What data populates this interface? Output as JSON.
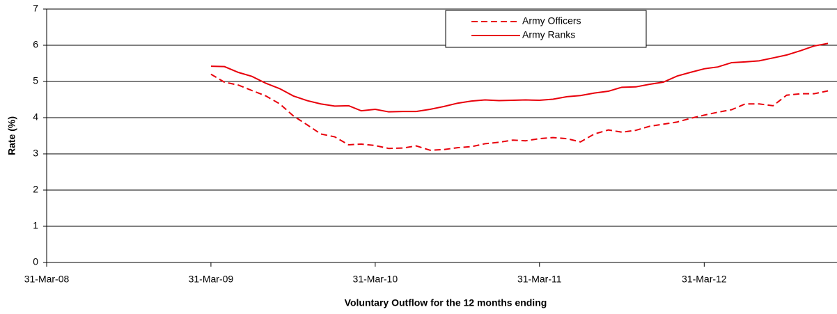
{
  "chart_data": {
    "type": "line",
    "y_label": "Rate (%)",
    "x_label": "Voluntary Outflow for the 12 months ending",
    "x": [
      "2009-03-31",
      "2009-04-30",
      "2009-05-31",
      "2009-06-30",
      "2009-07-31",
      "2009-08-31",
      "2009-09-30",
      "2009-10-31",
      "2009-11-30",
      "2009-12-31",
      "2010-01-31",
      "2010-02-28",
      "2010-03-31",
      "2010-04-30",
      "2010-05-31",
      "2010-06-30",
      "2010-07-31",
      "2010-08-31",
      "2010-09-30",
      "2010-10-31",
      "2010-11-30",
      "2010-12-31",
      "2011-01-31",
      "2011-02-28",
      "2011-03-31",
      "2011-04-30",
      "2011-05-31",
      "2011-06-30",
      "2011-07-31",
      "2011-08-31",
      "2011-09-30",
      "2011-10-31",
      "2011-11-30",
      "2011-12-31",
      "2012-01-31",
      "2012-02-29",
      "2012-03-31",
      "2012-04-30",
      "2012-05-31",
      "2012-06-30",
      "2012-07-31",
      "2012-08-31",
      "2012-09-30",
      "2012-10-31",
      "2012-11-30",
      "2012-12-31"
    ],
    "series": [
      {
        "name": "Army Officers",
        "color": "#e8000b",
        "dash": true,
        "values": [
          5.2,
          4.98,
          4.9,
          4.75,
          4.6,
          4.38,
          4.05,
          3.8,
          3.55,
          3.47,
          3.25,
          3.27,
          3.23,
          3.15,
          3.16,
          3.22,
          3.1,
          3.12,
          3.17,
          3.2,
          3.28,
          3.32,
          3.38,
          3.36,
          3.42,
          3.45,
          3.42,
          3.33,
          3.55,
          3.66,
          3.6,
          3.65,
          3.76,
          3.82,
          3.88,
          3.98,
          4.07,
          4.15,
          4.22,
          4.38,
          4.38,
          4.33,
          4.62,
          4.66,
          4.66,
          4.74
        ]
      },
      {
        "name": "Army Ranks",
        "color": "#e8000b",
        "dash": false,
        "values": [
          5.42,
          5.41,
          5.25,
          5.14,
          4.95,
          4.8,
          4.6,
          4.47,
          4.38,
          4.32,
          4.33,
          4.19,
          4.23,
          4.16,
          4.17,
          4.17,
          4.23,
          4.31,
          4.4,
          4.46,
          4.49,
          4.47,
          4.48,
          4.49,
          4.48,
          4.51,
          4.58,
          4.61,
          4.68,
          4.73,
          4.84,
          4.85,
          4.92,
          4.98,
          5.15,
          5.25,
          5.35,
          5.4,
          5.52,
          5.54,
          5.57,
          5.65,
          5.73,
          5.85,
          5.98,
          6.05
        ]
      }
    ],
    "xlim": [
      "2008-03-31",
      "2013-01-20"
    ],
    "xticks": [
      {
        "value": "2008-03-31",
        "label": "31-Mar-08"
      },
      {
        "value": "2009-03-31",
        "label": "31-Mar-09"
      },
      {
        "value": "2010-03-31",
        "label": "31-Mar-10"
      },
      {
        "value": "2011-03-31",
        "label": "31-Mar-11"
      },
      {
        "value": "2012-03-31",
        "label": "31-Mar-12"
      }
    ],
    "ylim": [
      0,
      7
    ],
    "yticks": [
      0,
      1,
      2,
      3,
      4,
      5,
      6,
      7
    ],
    "grid": true,
    "legend": "top"
  }
}
